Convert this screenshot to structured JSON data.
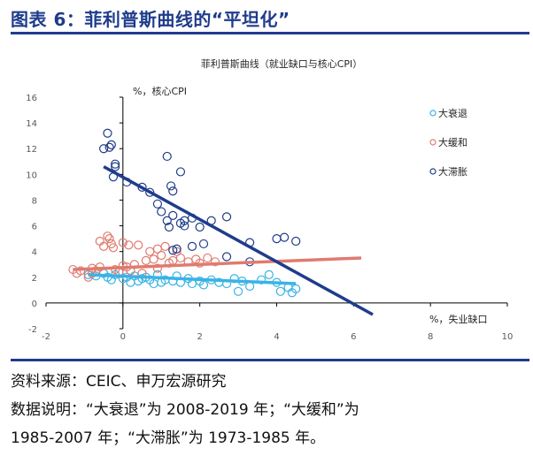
{
  "figure_title": "图表 6：菲利普斯曲线的“平坦化”",
  "notes": {
    "source": "资料来源：CEIC、申万宏源研究",
    "line1": "数据说明：“大衰退”为 2008-2019 年；“大缓和”为",
    "line2": "1985-2007 年；“大滞胀”为 1973-1985 年。"
  },
  "colors": {
    "title": "#1f3c8c",
    "great_recession": "#39b3e6",
    "great_moderation": "#e07b6f",
    "stagflation": "#1f3c8c",
    "axis": "#000000",
    "tick": "#595959"
  },
  "chart_data": {
    "type": "scatter",
    "title": "菲利普斯曲线（就业缺口与核心CPI）",
    "ylabel": "%，核心CPI",
    "xlabel": "%，失业缺口",
    "xlim": [
      -2,
      10
    ],
    "ylim": [
      -2,
      16
    ],
    "xticks": [
      "-2",
      "0",
      "2",
      "4",
      "6",
      "8",
      "10"
    ],
    "yticks": [
      "-2",
      "0",
      "2",
      "4",
      "6",
      "8",
      "10",
      "12",
      "14",
      "16"
    ],
    "legend_position": "top-right",
    "grid": false,
    "series": [
      {
        "name": "大衰退",
        "color_key": "great_recession",
        "points": [
          [
            -0.9,
            2.2
          ],
          [
            -0.7,
            2.1
          ],
          [
            -0.5,
            2.3
          ],
          [
            -0.4,
            2.0
          ],
          [
            -0.3,
            1.8
          ],
          [
            -0.2,
            2.2
          ],
          [
            -0.1,
            2.4
          ],
          [
            0.0,
            1.9
          ],
          [
            0.1,
            2.0
          ],
          [
            0.2,
            1.6
          ],
          [
            0.3,
            2.1
          ],
          [
            0.4,
            1.7
          ],
          [
            0.5,
            1.9
          ],
          [
            0.6,
            2.0
          ],
          [
            0.7,
            1.8
          ],
          [
            0.8,
            1.5
          ],
          [
            0.9,
            2.2
          ],
          [
            1.0,
            1.6
          ],
          [
            1.1,
            1.8
          ],
          [
            1.3,
            1.7
          ],
          [
            1.4,
            2.1
          ],
          [
            1.5,
            1.6
          ],
          [
            1.7,
            1.9
          ],
          [
            1.8,
            1.5
          ],
          [
            2.0,
            1.7
          ],
          [
            2.1,
            1.4
          ],
          [
            2.3,
            1.8
          ],
          [
            2.5,
            1.6
          ],
          [
            2.7,
            1.5
          ],
          [
            2.9,
            1.9
          ],
          [
            3.1,
            1.7
          ],
          [
            3.3,
            1.3
          ],
          [
            3.6,
            1.8
          ],
          [
            3.8,
            2.2
          ],
          [
            4.0,
            1.6
          ],
          [
            4.1,
            0.9
          ],
          [
            4.3,
            1.2
          ],
          [
            4.4,
            0.8
          ],
          [
            4.5,
            1.1
          ],
          [
            3.0,
            0.9
          ]
        ]
      },
      {
        "name": "大缓和",
        "color_key": "great_moderation",
        "points": [
          [
            -1.3,
            2.6
          ],
          [
            -1.1,
            2.5
          ],
          [
            -0.9,
            2.0
          ],
          [
            -0.8,
            2.3
          ],
          [
            -0.6,
            2.8
          ],
          [
            -0.5,
            4.4
          ],
          [
            -0.4,
            5.2
          ],
          [
            -0.35,
            5.0
          ],
          [
            -0.3,
            4.6
          ],
          [
            -0.25,
            4.3
          ],
          [
            -0.2,
            2.6
          ],
          [
            -0.1,
            2.4
          ],
          [
            0.0,
            4.7
          ],
          [
            0.1,
            2.8
          ],
          [
            0.15,
            4.5
          ],
          [
            0.2,
            2.5
          ],
          [
            0.3,
            3.0
          ],
          [
            0.4,
            4.5
          ],
          [
            0.5,
            2.3
          ],
          [
            0.6,
            3.3
          ],
          [
            0.7,
            4.0
          ],
          [
            0.8,
            3.4
          ],
          [
            0.9,
            2.7
          ],
          [
            1.0,
            3.7
          ],
          [
            1.1,
            4.4
          ],
          [
            1.2,
            3.1
          ],
          [
            1.3,
            3.3
          ],
          [
            1.4,
            4.0
          ],
          [
            1.5,
            3.5
          ],
          [
            1.7,
            3.2
          ],
          [
            1.9,
            3.4
          ],
          [
            2.0,
            3.1
          ],
          [
            2.2,
            3.5
          ],
          [
            2.4,
            3.2
          ],
          [
            -0.6,
            4.8
          ],
          [
            -0.7,
            2.5
          ],
          [
            0.0,
            2.9
          ],
          [
            -1.2,
            2.3
          ],
          [
            -0.8,
            2.7
          ],
          [
            0.9,
            4.2
          ]
        ]
      },
      {
        "name": "大滞胀",
        "color_key": "stagflation",
        "points": [
          [
            -0.5,
            12.0
          ],
          [
            -0.4,
            13.2
          ],
          [
            -0.35,
            12.1
          ],
          [
            -0.3,
            12.3
          ],
          [
            -0.2,
            10.8
          ],
          [
            -0.2,
            10.6
          ],
          [
            -0.25,
            9.8
          ],
          [
            0.1,
            9.4
          ],
          [
            0.5,
            9.0
          ],
          [
            0.7,
            8.6
          ],
          [
            0.9,
            7.7
          ],
          [
            1.0,
            7.1
          ],
          [
            1.15,
            6.4
          ],
          [
            1.2,
            5.9
          ],
          [
            1.3,
            6.8
          ],
          [
            1.5,
            6.2
          ],
          [
            1.6,
            6.0
          ],
          [
            1.15,
            11.4
          ],
          [
            1.25,
            9.1
          ],
          [
            1.3,
            8.7
          ],
          [
            1.5,
            10.2
          ],
          [
            1.6,
            6.4
          ],
          [
            1.8,
            6.6
          ],
          [
            2.0,
            5.9
          ],
          [
            2.3,
            6.4
          ],
          [
            2.7,
            6.7
          ],
          [
            1.8,
            4.4
          ],
          [
            2.1,
            4.6
          ],
          [
            1.4,
            4.2
          ],
          [
            1.3,
            4.1
          ],
          [
            2.7,
            3.6
          ],
          [
            3.3,
            4.7
          ],
          [
            3.3,
            3.2
          ],
          [
            4.0,
            5.0
          ],
          [
            4.2,
            5.1
          ],
          [
            4.5,
            4.8
          ]
        ]
      }
    ],
    "trendlines": [
      {
        "series": "大衰退",
        "from": [
          -0.9,
          2.2
        ],
        "to": [
          4.5,
          1.5
        ]
      },
      {
        "series": "大缓和",
        "from": [
          -1.3,
          2.6
        ],
        "to": [
          6.2,
          3.5
        ]
      },
      {
        "series": "大滞胀",
        "from": [
          -0.5,
          10.6
        ],
        "to": [
          6.5,
          -0.9
        ]
      }
    ]
  }
}
